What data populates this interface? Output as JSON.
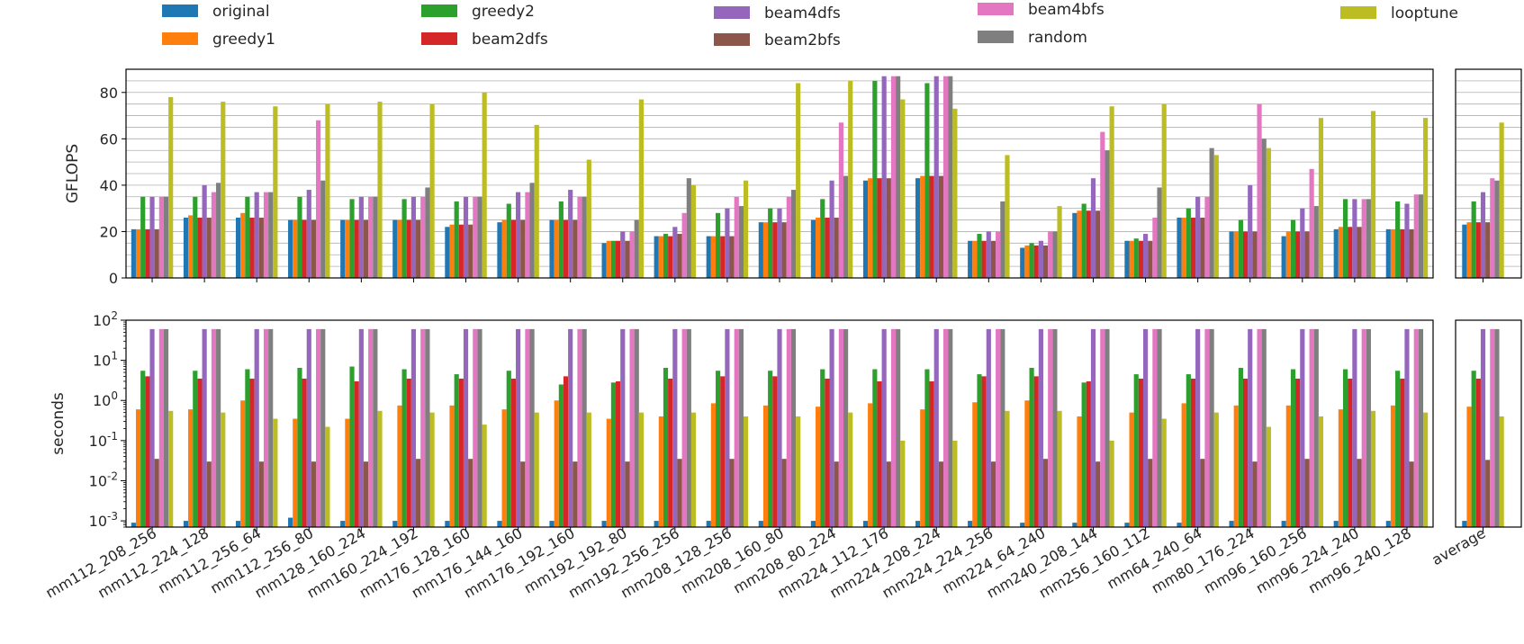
{
  "chart_data": {
    "type": "bar",
    "legend": {
      "placement": "top",
      "entries": [
        {
          "name": "original",
          "color": "#1f77b4"
        },
        {
          "name": "greedy1",
          "color": "#ff7f0e"
        },
        {
          "name": "greedy2",
          "color": "#2ca02c"
        },
        {
          "name": "beam2dfs",
          "color": "#d62728"
        },
        {
          "name": "beam4dfs",
          "color": "#9467bd"
        },
        {
          "name": "beam2bfs",
          "color": "#8c564b"
        },
        {
          "name": "beam4bfs",
          "color": "#e377c2"
        },
        {
          "name": "random",
          "color": "#7f7f7f"
        },
        {
          "name": "looptune",
          "color": "#bcbd22"
        }
      ]
    },
    "categories": [
      "mm112_208_256",
      "mm112_224_128",
      "mm112_256_64",
      "mm112_256_80",
      "mm128_160_224",
      "mm160_224_192",
      "mm176_128_160",
      "mm176_144_160",
      "mm176_192_160",
      "mm192_192_80",
      "mm192_256_256",
      "mm208_128_256",
      "mm208_160_80",
      "mm208_80_224",
      "mm224_112_176",
      "mm224_208_224",
      "mm224_224_256",
      "mm224_64_240",
      "mm240_208_144",
      "mm256_160_112",
      "mm64_240_64",
      "mm80_176_224",
      "mm96_160_256",
      "mm96_224_240",
      "mm96_240_128"
    ],
    "average_label": "average",
    "top": {
      "ylabel": "GFLOPS",
      "ylim": [
        0,
        90
      ],
      "yticks": [
        "0",
        "20",
        "40",
        "60",
        "80"
      ],
      "grid": "horizontal minor",
      "series": [
        {
          "name": "original",
          "values": [
            21,
            26,
            26,
            25,
            25,
            25,
            22,
            24,
            25,
            15,
            18,
            18,
            24,
            25,
            42,
            43,
            16,
            13,
            28,
            16,
            26,
            20,
            18,
            21,
            21
          ],
          "average": 23
        },
        {
          "name": "greedy1",
          "values": [
            21,
            27,
            28,
            25,
            25,
            25,
            23,
            25,
            25,
            16,
            18,
            18,
            24,
            26,
            43,
            44,
            16,
            14,
            29,
            16,
            26,
            20,
            20,
            22,
            21
          ],
          "average": 24
        },
        {
          "name": "greedy2",
          "values": [
            35,
            35,
            35,
            35,
            34,
            34,
            33,
            32,
            33,
            16,
            19,
            28,
            30,
            34,
            85,
            84,
            19,
            15,
            32,
            17,
            30,
            25,
            25,
            34,
            33
          ],
          "average": 33
        },
        {
          "name": "beam2dfs",
          "values": [
            21,
            26,
            26,
            25,
            25,
            25,
            23,
            25,
            25,
            16,
            18,
            18,
            24,
            26,
            43,
            44,
            16,
            14,
            29,
            16,
            26,
            20,
            20,
            22,
            21
          ],
          "average": 24
        },
        {
          "name": "beam4dfs",
          "values": [
            35,
            40,
            37,
            38,
            35,
            35,
            35,
            37,
            38,
            20,
            22,
            30,
            30,
            42,
            87,
            87,
            20,
            16,
            43,
            19,
            35,
            40,
            30,
            34,
            32
          ],
          "average": 37
        },
        {
          "name": "beam2bfs",
          "values": [
            21,
            26,
            26,
            25,
            25,
            25,
            23,
            25,
            25,
            16,
            19,
            18,
            24,
            26,
            43,
            44,
            16,
            14,
            29,
            16,
            26,
            20,
            20,
            22,
            21
          ],
          "average": 24
        },
        {
          "name": "beam4bfs",
          "values": [
            35,
            37,
            37,
            68,
            35,
            35,
            35,
            37,
            35,
            20,
            28,
            35,
            35,
            67,
            87,
            87,
            20,
            20,
            63,
            26,
            35,
            75,
            47,
            34,
            36
          ],
          "average": 43
        },
        {
          "name": "random",
          "values": [
            35,
            41,
            37,
            42,
            35,
            39,
            35,
            41,
            35,
            25,
            43,
            31,
            38,
            44,
            87,
            87,
            33,
            20,
            55,
            39,
            56,
            60,
            31,
            34,
            36
          ],
          "average": 42
        },
        {
          "name": "looptune",
          "values": [
            78,
            76,
            74,
            75,
            76,
            75,
            80,
            66,
            51,
            77,
            40,
            42,
            84,
            85,
            77,
            73,
            53,
            31,
            74,
            75,
            53,
            56,
            69,
            72,
            69
          ],
          "average": 67
        }
      ]
    },
    "bottom": {
      "ylabel": "seconds",
      "scale": "log",
      "ylim": [
        0.0007,
        100
      ],
      "yticks": [
        "10^-3",
        "10^-2",
        "10^-1",
        "10^0",
        "10^1",
        "10^2"
      ],
      "series": [
        {
          "name": "original",
          "values": [
            0.0009,
            0.001,
            0.001,
            0.0012,
            0.001,
            0.001,
            0.001,
            0.001,
            0.001,
            0.001,
            0.001,
            0.001,
            0.001,
            0.001,
            0.001,
            0.001,
            0.001,
            0.0009,
            0.0009,
            0.0009,
            0.0009,
            0.001,
            0.001,
            0.001,
            0.001
          ],
          "average": 0.001
        },
        {
          "name": "greedy1",
          "values": [
            0.6,
            0.6,
            1.0,
            0.35,
            0.35,
            0.75,
            0.75,
            0.6,
            1.0,
            0.35,
            0.4,
            0.85,
            0.75,
            0.7,
            0.85,
            0.6,
            0.9,
            1.0,
            0.4,
            0.5,
            0.85,
            0.75,
            0.75,
            0.6,
            0.75
          ],
          "average": 0.7
        },
        {
          "name": "greedy2",
          "values": [
            5.5,
            5.5,
            6.0,
            6.5,
            7.0,
            6.0,
            4.5,
            5.5,
            2.5,
            2.8,
            6.5,
            5.5,
            5.5,
            6.0,
            6.0,
            6.0,
            4.5,
            6.5,
            2.8,
            4.5,
            4.5,
            6.5,
            6.0,
            6.0,
            5.5
          ],
          "average": 5.5
        },
        {
          "name": "beam2dfs",
          "values": [
            4.0,
            3.5,
            3.5,
            3.5,
            3.0,
            3.5,
            3.5,
            3.5,
            4.0,
            3.0,
            3.5,
            4.0,
            4.0,
            3.5,
            3.0,
            3.0,
            4.0,
            4.0,
            3.0,
            3.5,
            3.5,
            3.5,
            3.5,
            3.5,
            3.5
          ],
          "average": 3.5
        },
        {
          "name": "beam4dfs",
          "values": [
            60,
            60,
            60,
            60,
            60,
            60,
            60,
            60,
            60,
            60,
            60,
            60,
            60,
            60,
            60,
            60,
            60,
            60,
            60,
            60,
            60,
            60,
            60,
            60,
            60
          ],
          "average": 60
        },
        {
          "name": "beam2bfs",
          "values": [
            0.035,
            0.03,
            0.03,
            0.03,
            0.03,
            0.035,
            0.035,
            0.03,
            0.03,
            0.03,
            0.035,
            0.035,
            0.035,
            0.03,
            0.03,
            0.03,
            0.03,
            0.035,
            0.03,
            0.035,
            0.035,
            0.03,
            0.035,
            0.035,
            0.03
          ],
          "average": 0.033
        },
        {
          "name": "beam4bfs",
          "values": [
            60,
            60,
            60,
            60,
            60,
            60,
            60,
            60,
            60,
            60,
            60,
            60,
            60,
            60,
            60,
            60,
            60,
            60,
            60,
            60,
            60,
            60,
            60,
            60,
            60
          ],
          "average": 60
        },
        {
          "name": "random",
          "values": [
            60,
            60,
            60,
            60,
            60,
            60,
            60,
            60,
            60,
            60,
            60,
            60,
            60,
            60,
            60,
            60,
            60,
            60,
            60,
            60,
            60,
            60,
            60,
            60,
            60
          ],
          "average": 60
        },
        {
          "name": "looptune",
          "values": [
            0.55,
            0.5,
            0.35,
            0.22,
            0.55,
            0.5,
            0.25,
            0.5,
            0.5,
            0.5,
            0.5,
            0.4,
            0.4,
            0.5,
            0.1,
            0.1,
            0.55,
            0.55,
            0.1,
            0.35,
            0.5,
            0.22,
            0.4,
            0.55,
            0.5
          ],
          "average": 0.4
        }
      ]
    }
  }
}
